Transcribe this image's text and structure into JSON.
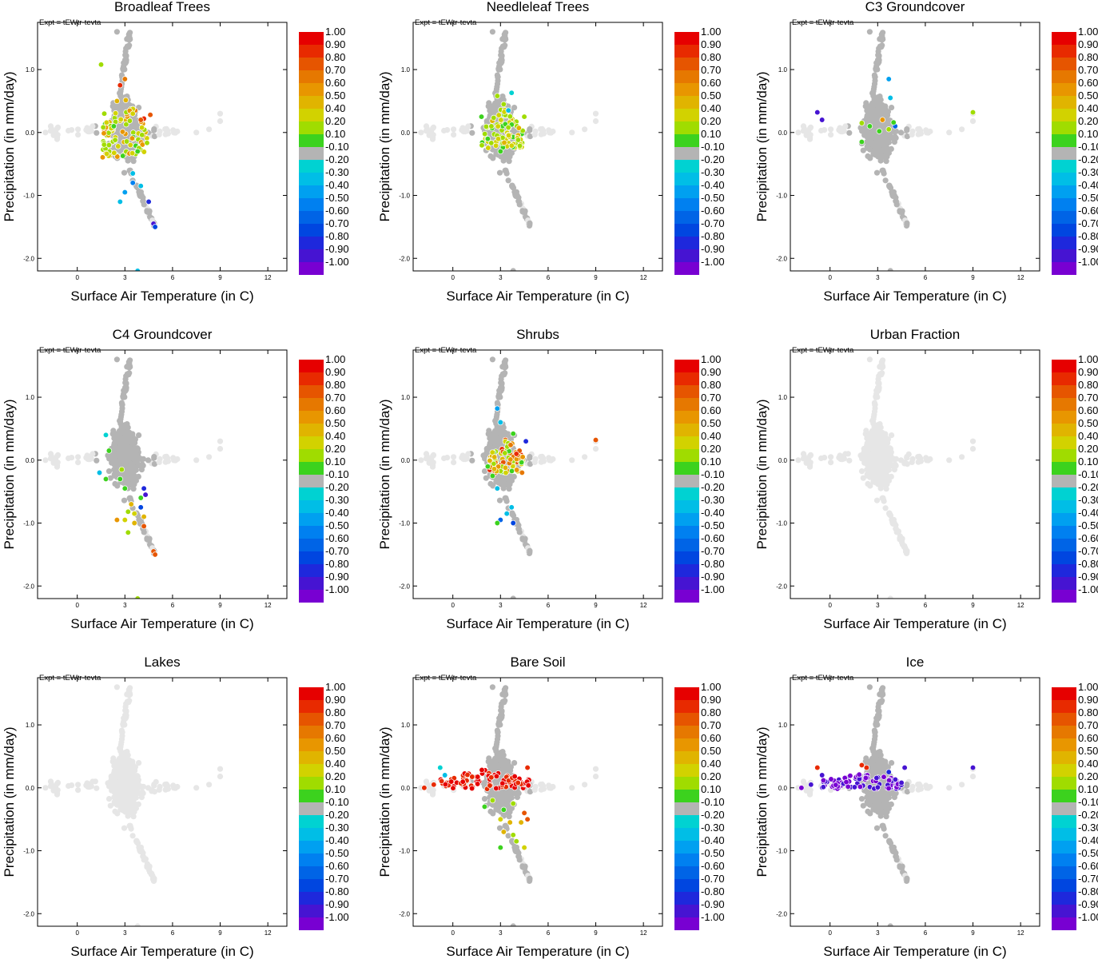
{
  "figure": {
    "expt_label": "Expt = tEWtr-tevta",
    "xlabel": "Surface Air Temperature (in C)",
    "ylabel": "Precipitation (in mm/day)"
  },
  "colors": {
    "background_point": "#e6e6e6",
    "neutral_point": "#b4b4b4"
  },
  "colorbar": {
    "labels": [
      "1.00",
      "0.90",
      "0.80",
      "0.70",
      "0.60",
      "0.50",
      "0.40",
      "0.20",
      "0.10",
      "-0.10",
      "-0.20",
      "-0.30",
      "-0.40",
      "-0.50",
      "-0.60",
      "-0.70",
      "-0.80",
      "-0.90",
      "-1.00"
    ],
    "colors": [
      "#e60000",
      "#e82a00",
      "#e65500",
      "#e67800",
      "#e89600",
      "#e0b400",
      "#d2d200",
      "#a0dc00",
      "#3cd21e",
      "#b4b4b4",
      "#00d2d2",
      "#00bee6",
      "#00a0f0",
      "#0080f0",
      "#0064e6",
      "#0046e0",
      "#1e28dc",
      "#4614d2",
      "#7800d2"
    ]
  },
  "chart_data": [
    {
      "type": "scatter",
      "title": "Broadleaf Trees",
      "xlabel": "Surface Air Temperature (in C)",
      "ylabel": "Precipitation (in mm/day)",
      "xticks": [
        "0",
        "3",
        "6",
        "9",
        "12"
      ],
      "yticks": [
        "1.0",
        "0.0",
        "-1.0",
        "-2.0"
      ],
      "xlim": [
        -2.5,
        13.2
      ],
      "ylim": [
        -2.2,
        1.75
      ],
      "colored_points": [
        [
          1.5,
          1.08,
          0.3
        ],
        [
          2.7,
          0.75,
          0.9
        ],
        [
          3.0,
          0.85,
          0.7
        ],
        [
          2.5,
          0.5,
          0.5
        ],
        [
          3.5,
          0.3,
          0.4
        ],
        [
          4.6,
          0.28,
          0.85
        ],
        [
          4.2,
          0.22,
          0.9
        ],
        [
          4.0,
          0.2,
          0.8
        ],
        [
          1.7,
          0.3,
          0.3
        ],
        [
          2.0,
          -0.2,
          0.2
        ],
        [
          3.5,
          -0.65,
          -0.3
        ],
        [
          3.5,
          -0.8,
          -0.5
        ],
        [
          4.0,
          -0.85,
          -0.3
        ],
        [
          3.0,
          -0.95,
          -0.4
        ],
        [
          2.7,
          -1.1,
          -0.3
        ],
        [
          4.5,
          -1.1,
          -0.8
        ],
        [
          4.8,
          -1.45,
          -0.9
        ],
        [
          4.9,
          -1.5,
          -0.7
        ],
        [
          3.8,
          -2.2,
          -0.3
        ],
        [
          2.3,
          0.1,
          0.1
        ],
        [
          3.8,
          -0.3,
          0.1
        ]
      ],
      "dense_colored_region": {
        "x": [
          1.6,
          4.4
        ],
        "y": [
          -0.4,
          0.6
        ],
        "value_range": [
          0.1,
          0.7
        ]
      }
    },
    {
      "type": "scatter",
      "title": "Needleleaf Trees",
      "xlabel": "Surface Air Temperature (in C)",
      "ylabel": "Precipitation (in mm/day)",
      "xticks": [
        "0",
        "3",
        "6",
        "9",
        "12"
      ],
      "yticks": [
        "1.0",
        "0.0",
        "-1.0",
        "-2.0"
      ],
      "xlim": [
        -2.5,
        13.2
      ],
      "ylim": [
        -2.2,
        1.75
      ],
      "colored_points": [
        [
          2.8,
          0.58,
          0.2
        ],
        [
          3.2,
          0.45,
          0.3
        ],
        [
          1.8,
          0.25,
          0.15
        ],
        [
          4.5,
          0.25,
          0.25
        ],
        [
          3.0,
          -0.3,
          0.1
        ],
        [
          2.2,
          -0.1,
          0.1
        ],
        [
          3.7,
          0.63,
          -0.2
        ],
        [
          3.5,
          0.35,
          -0.3
        ]
      ],
      "dense_colored_region": {
        "x": [
          1.8,
          4.4
        ],
        "y": [
          -0.25,
          0.4
        ],
        "value_range": [
          0.1,
          0.5
        ]
      }
    },
    {
      "type": "scatter",
      "title": "C3 Groundcover",
      "xlabel": "Surface Air Temperature (in C)",
      "ylabel": "Precipitation (in mm/day)",
      "xticks": [
        "0",
        "3",
        "6",
        "9",
        "12"
      ],
      "yticks": [
        "1.0",
        "0.0",
        "-1.0",
        "-2.0"
      ],
      "xlim": [
        -2.5,
        13.2
      ],
      "ylim": [
        -2.2,
        1.75
      ],
      "colored_points": [
        [
          -0.8,
          0.32,
          -0.9
        ],
        [
          -0.5,
          0.2,
          -0.9
        ],
        [
          9.0,
          0.32,
          0.3
        ],
        [
          3.3,
          0.2,
          0.6
        ],
        [
          2.0,
          0.15,
          0.2
        ],
        [
          2.5,
          0.1,
          0.15
        ],
        [
          4.1,
          0.1,
          -0.6
        ],
        [
          2.0,
          -0.15,
          0.1
        ],
        [
          3.1,
          0.02,
          0.15
        ],
        [
          3.7,
          0.05,
          0.2
        ],
        [
          4.0,
          0.16,
          0.1
        ],
        [
          3.7,
          0.85,
          -0.4
        ],
        [
          3.8,
          0.55,
          -0.3
        ]
      ],
      "dense_colored_region": null
    },
    {
      "type": "scatter",
      "title": "C4 Groundcover",
      "xlabel": "Surface Air Temperature (in C)",
      "ylabel": "Precipitation (in mm/day)",
      "xticks": [
        "0",
        "3",
        "6",
        "9",
        "12"
      ],
      "yticks": [
        "1.0",
        "0.0",
        "-1.0",
        "-2.0"
      ],
      "xlim": [
        -2.5,
        13.2
      ],
      "ylim": [
        -2.2,
        1.75
      ],
      "colored_points": [
        [
          1.8,
          0.4,
          -0.2
        ],
        [
          2.0,
          0.15,
          0.1
        ],
        [
          1.8,
          -0.3,
          0.15
        ],
        [
          1.4,
          -0.2,
          -0.3
        ],
        [
          2.7,
          -0.3,
          0.1
        ],
        [
          3.0,
          -0.45,
          0.15
        ],
        [
          4.0,
          -0.6,
          0.1
        ],
        [
          4.2,
          -0.45,
          -0.8
        ],
        [
          4.3,
          -0.55,
          -0.9
        ],
        [
          3.4,
          -0.7,
          0.5
        ],
        [
          3.2,
          -0.82,
          0.3
        ],
        [
          3.6,
          -0.85,
          0.4
        ],
        [
          4.0,
          -0.75,
          -0.7
        ],
        [
          4.2,
          -0.9,
          0.5
        ],
        [
          2.5,
          -0.95,
          0.6
        ],
        [
          3.6,
          -1.0,
          0.5
        ],
        [
          3.2,
          -1.15,
          0.2
        ],
        [
          4.2,
          -1.05,
          0.8
        ],
        [
          4.8,
          -1.45,
          0.75
        ],
        [
          4.9,
          -1.5,
          0.8
        ],
        [
          3.8,
          -2.2,
          0.2
        ],
        [
          3.0,
          -0.95,
          0.4
        ],
        [
          2.8,
          -0.15,
          0.2
        ]
      ],
      "dense_colored_region": null
    },
    {
      "type": "scatter",
      "title": "Shrubs",
      "xlabel": "Surface Air Temperature (in C)",
      "ylabel": "Precipitation (in mm/day)",
      "xticks": [
        "0",
        "3",
        "6",
        "9",
        "12"
      ],
      "yticks": [
        "1.0",
        "0.0",
        "-1.0",
        "-2.0"
      ],
      "xlim": [
        -2.5,
        13.2
      ],
      "ylim": [
        -2.2,
        1.75
      ],
      "colored_points": [
        [
          9.0,
          0.32,
          0.75
        ],
        [
          4.6,
          0.3,
          -0.8
        ],
        [
          3.8,
          0.42,
          0.1
        ],
        [
          3.0,
          0.6,
          -0.3
        ],
        [
          2.8,
          0.82,
          -0.4
        ],
        [
          2.2,
          -0.1,
          0.1
        ],
        [
          2.5,
          -0.25,
          0.1
        ],
        [
          4.2,
          0.15,
          0.85
        ],
        [
          4.0,
          0.1,
          0.9
        ],
        [
          4.4,
          0.05,
          0.6
        ],
        [
          2.8,
          -0.45,
          -0.3
        ],
        [
          3.7,
          -0.75,
          -0.3
        ],
        [
          3.4,
          -0.85,
          -0.3
        ],
        [
          3.0,
          -0.95,
          -0.6
        ],
        [
          3.8,
          -1.0,
          -0.7
        ],
        [
          2.8,
          -1.0,
          0.1
        ]
      ],
      "dense_colored_region": {
        "x": [
          2.3,
          4.5
        ],
        "y": [
          -0.2,
          0.35
        ],
        "value_range": [
          0.1,
          0.9
        ]
      }
    },
    {
      "type": "scatter",
      "title": "Urban Fraction",
      "xlabel": "Surface Air Temperature (in C)",
      "ylabel": "Precipitation (in mm/day)",
      "xticks": [
        "0",
        "3",
        "6",
        "9",
        "12"
      ],
      "yticks": [
        "1.0",
        "0.0",
        "-1.0",
        "-2.0"
      ],
      "xlim": [
        -2.5,
        13.2
      ],
      "ylim": [
        -2.2,
        1.75
      ],
      "colored_points": [],
      "all_neutral_light": true,
      "dense_colored_region": null
    },
    {
      "type": "scatter",
      "title": "Lakes",
      "xlabel": "Surface Air Temperature (in C)",
      "ylabel": "Precipitation (in mm/day)",
      "xticks": [
        "0",
        "3",
        "6",
        "9",
        "12"
      ],
      "yticks": [
        "1.0",
        "0.0",
        "-1.0",
        "-2.0"
      ],
      "xlim": [
        -2.5,
        13.2
      ],
      "ylim": [
        -2.2,
        1.75
      ],
      "colored_points": [],
      "all_neutral_light": true,
      "dense_colored_region": null
    },
    {
      "type": "scatter",
      "title": "Bare Soil",
      "xlabel": "Surface Air Temperature (in C)",
      "ylabel": "Precipitation (in mm/day)",
      "xticks": [
        "0",
        "3",
        "6",
        "9",
        "12"
      ],
      "yticks": [
        "1.0",
        "0.0",
        "-1.0",
        "-2.0"
      ],
      "xlim": [
        -2.5,
        13.2
      ],
      "ylim": [
        -2.2,
        1.75
      ],
      "colored_points": [
        [
          -1.8,
          0.0,
          0.95
        ],
        [
          -1.2,
          0.05,
          0.95
        ],
        [
          -0.8,
          0.32,
          -0.2
        ],
        [
          -0.5,
          0.2,
          -0.3
        ],
        [
          4.7,
          0.32,
          0.95
        ],
        [
          4.1,
          0.08,
          0.9
        ],
        [
          4.5,
          -0.4,
          0.8
        ],
        [
          4.7,
          -0.5,
          0.85
        ],
        [
          3.0,
          -0.5,
          0.4
        ],
        [
          3.6,
          -0.55,
          0.5
        ],
        [
          4.3,
          -0.55,
          0.5
        ],
        [
          3.2,
          -0.7,
          0.45
        ],
        [
          3.8,
          -0.75,
          0.2
        ],
        [
          4.0,
          -0.85,
          0.3
        ],
        [
          3.0,
          -0.95,
          0.1
        ],
        [
          4.5,
          -0.95,
          0.4
        ],
        [
          2.0,
          -0.3,
          0.15
        ],
        [
          2.5,
          -0.2,
          0.2
        ],
        [
          3.2,
          -0.35,
          0.15
        ],
        [
          3.8,
          -0.25,
          0.2
        ]
      ],
      "dense_colored_region": {
        "x": [
          -0.8,
          4.8
        ],
        "y": [
          -0.02,
          0.3
        ],
        "value_range": [
          0.9,
          1.0
        ]
      }
    },
    {
      "type": "scatter",
      "title": "Ice",
      "xlabel": "Surface Air Temperature (in C)",
      "ylabel": "Precipitation (in mm/day)",
      "xticks": [
        "0",
        "3",
        "6",
        "9",
        "12"
      ],
      "yticks": [
        "1.0",
        "0.0",
        "-1.0",
        "-2.0"
      ],
      "xlim": [
        -2.5,
        13.2
      ],
      "ylim": [
        -2.2,
        1.75
      ],
      "colored_points": [
        [
          -1.8,
          0.0,
          -1.0
        ],
        [
          -1.2,
          0.05,
          -0.9
        ],
        [
          -0.8,
          0.32,
          0.9
        ],
        [
          -0.5,
          0.2,
          -0.95
        ],
        [
          2.0,
          0.36,
          0.95
        ],
        [
          2.3,
          0.32,
          0.9
        ],
        [
          9.0,
          0.32,
          -0.9
        ],
        [
          4.7,
          0.32,
          -0.9
        ],
        [
          4.5,
          0.08,
          -0.95
        ],
        [
          3.7,
          0.25,
          -0.8
        ]
      ],
      "dense_colored_region": {
        "x": [
          -0.5,
          4.6
        ],
        "y": [
          -0.02,
          0.25
        ],
        "value_range": [
          -1.0,
          -0.9
        ]
      }
    }
  ]
}
